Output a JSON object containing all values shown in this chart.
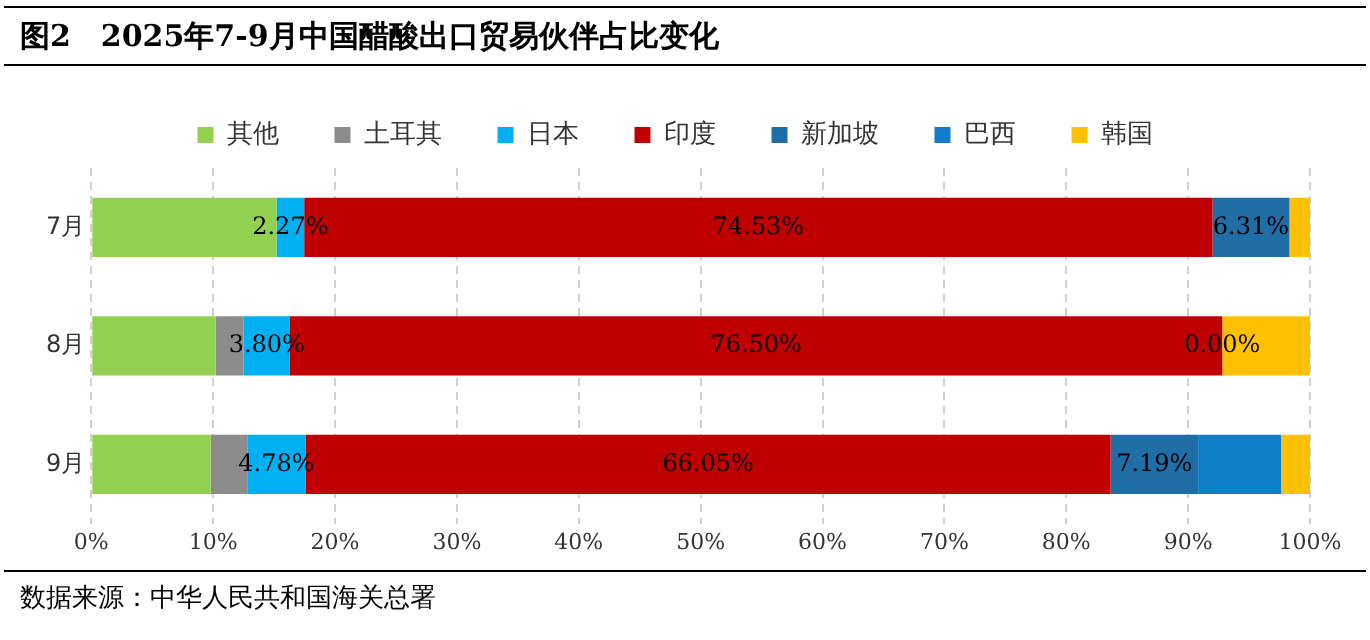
{
  "chart_data": {
    "type": "bar",
    "orientation": "horizontal",
    "stacked": true,
    "title": "图2　2025年7-9月中国醋酸出口贸易伙伴占比变化",
    "categories": [
      "7月",
      "8月",
      "9月"
    ],
    "series": [
      {
        "name": "其他",
        "color": "#92d050",
        "values": [
          15.2,
          10.2,
          9.8
        ]
      },
      {
        "name": "土耳其",
        "color": "#8c8c8c",
        "values": [
          0,
          2.3,
          3.0
        ]
      },
      {
        "name": "日本",
        "color": "#00b0f0",
        "values": [
          2.27,
          3.8,
          4.78
        ],
        "value_labels": [
          "2.27%",
          "3.80%",
          "4.78%"
        ]
      },
      {
        "name": "印度",
        "color": "#c00000",
        "values": [
          74.53,
          76.5,
          66.05
        ],
        "value_labels": [
          "74.53%",
          "76.50%",
          "66.05%"
        ]
      },
      {
        "name": "新加坡",
        "color": "#1f6ea8",
        "values": [
          6.31,
          0.0,
          7.19
        ],
        "value_labels": [
          "6.31%",
          "0.00%",
          "7.19%"
        ]
      },
      {
        "name": "巴西",
        "color": "#0f7dc8",
        "values": [
          0,
          0,
          6.8
        ]
      },
      {
        "name": "韩国",
        "color": "#ffc000",
        "values": [
          1.69,
          7.2,
          2.4
        ]
      }
    ],
    "xlim": [
      0,
      100
    ],
    "xticks": [
      {
        "value": 0,
        "label": "0%"
      },
      {
        "value": 10,
        "label": "10%"
      },
      {
        "value": 20,
        "label": "20%"
      },
      {
        "value": 30,
        "label": "30%"
      },
      {
        "value": 40,
        "label": "40%"
      },
      {
        "value": 50,
        "label": "50%"
      },
      {
        "value": 60,
        "label": "60%"
      },
      {
        "value": 70,
        "label": "70%"
      },
      {
        "value": 80,
        "label": "80%"
      },
      {
        "value": 90,
        "label": "90%"
      },
      {
        "value": 100,
        "label": "100%"
      }
    ],
    "grid": "x",
    "legend": "top",
    "annotations": [
      "数据来源：中华人民共和国海关总署"
    ]
  }
}
